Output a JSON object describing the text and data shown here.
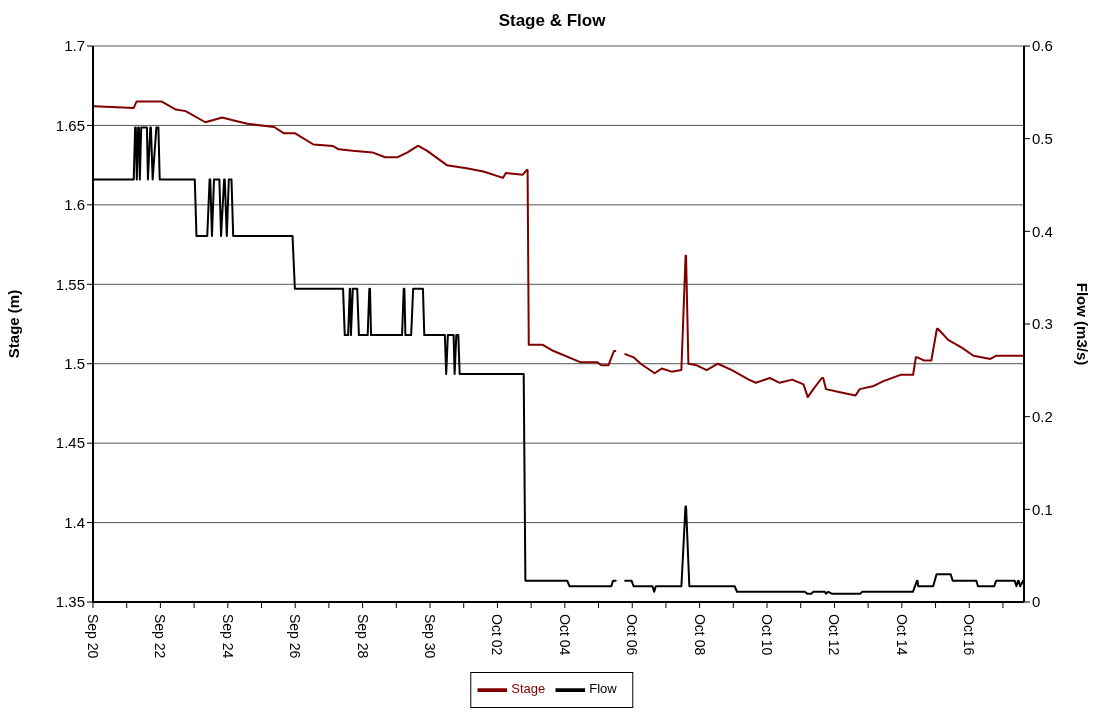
{
  "chart_data": {
    "type": "line",
    "title": "Stage & Flow",
    "ylabel": "Stage (m)",
    "y2label": "Flow (m3/s)",
    "xlim": [
      "--09-20T00:00",
      "--10-17T15:00"
    ],
    "xticks": [
      {
        "value": "--09-20",
        "label": "Sep 20"
      },
      {
        "value": "--09-21",
        "label": null
      },
      {
        "value": "--09-22",
        "label": "Sep 22"
      },
      {
        "value": "--09-23",
        "label": null
      },
      {
        "value": "--09-24",
        "label": "Sep 24"
      },
      {
        "value": "--09-25",
        "label": null
      },
      {
        "value": "--09-26",
        "label": "Sep 26"
      },
      {
        "value": "--09-27",
        "label": null
      },
      {
        "value": "--09-28",
        "label": "Sep 28"
      },
      {
        "value": "--09-29",
        "label": null
      },
      {
        "value": "--09-30",
        "label": "Sep 30"
      },
      {
        "value": "--10-01",
        "label": null
      },
      {
        "value": "--10-02",
        "label": "Oct 02"
      },
      {
        "value": "--10-03",
        "label": null
      },
      {
        "value": "--10-04",
        "label": "Oct 04"
      },
      {
        "value": "--10-05",
        "label": null
      },
      {
        "value": "--10-06",
        "label": "Oct 06"
      },
      {
        "value": "--10-07",
        "label": null
      },
      {
        "value": "--10-08",
        "label": "Oct 08"
      },
      {
        "value": "--10-09",
        "label": null
      },
      {
        "value": "--10-10",
        "label": "Oct 10"
      },
      {
        "value": "--10-11",
        "label": null
      },
      {
        "value": "--10-12",
        "label": "Oct 12"
      },
      {
        "value": "--10-13",
        "label": null
      },
      {
        "value": "--10-14",
        "label": "Oct 14"
      },
      {
        "value": "--10-15",
        "label": null
      },
      {
        "value": "--10-16",
        "label": "Oct 16"
      },
      {
        "value": "--10-17",
        "label": null
      }
    ],
    "ylim": [
      1.35,
      1.7
    ],
    "yticks": [
      1.35,
      1.4,
      1.45,
      1.5,
      1.55,
      1.6,
      1.65,
      1.7
    ],
    "y2lim": [
      0,
      0.6
    ],
    "y2ticks": [
      0,
      0.1,
      0.2,
      0.3,
      0.4,
      0.5,
      0.6
    ],
    "grid": "y",
    "legend": "bottom",
    "series": [
      {
        "name": "Stage",
        "color": "#800000",
        "x": [
          "--09-20T01:00",
          "--09-21T05:00",
          "--09-21T07:00",
          "--09-21T14:00",
          "--09-22T01:00",
          "--09-22T11:00",
          "--09-22T18:00",
          "--09-23T08:00",
          "--09-23T20:00",
          "--09-24T05:00",
          "--09-24T14:00",
          "--09-25T09:00",
          "--09-25T16:00",
          "--09-26T00:00",
          "--09-26T13:00",
          "--09-27T03:00",
          "--09-27T07:00",
          "--09-27T17:00",
          "--09-28T07:00",
          "--09-28T16:00",
          "--09-29T01:00",
          "--09-29T08:00",
          "--09-29T15:00",
          "--09-29T16:00",
          "--09-29T22:00",
          "--09-30T12:00",
          "--10-01T02:00",
          "--10-01T14:00",
          "--10-02T04:00",
          "--10-02T06:00",
          "--10-02T18:00",
          "--10-02T21:00",
          "--10-02T21:30",
          "--10-02T22:20",
          "--10-03T08:00",
          "--10-03T16:00",
          "--10-04T11:00",
          "--10-04T23:00",
          "--10-05T02:00",
          "--10-05T07:00",
          "--10-05T11:00",
          "--10-05T12:00",
          "--10-05T16:00",
          "--10-05T19:00",
          "--10-06T01:00",
          "--10-06T06:00",
          "--10-06T16:00",
          "--10-06T21:00",
          "--10-07T04:00",
          "--10-07T11:00",
          "--10-07T14:00",
          "--10-07T14:20",
          "--10-07T16:00",
          "--10-07T22:00",
          "--10-08T05:00",
          "--10-08T13:00",
          "--10-08T23:00",
          "--10-09T11:00",
          "--10-09T16:00",
          "--10-10T02:00",
          "--10-10T09:00",
          "--10-10T18:00",
          "--10-11T02:00",
          "--10-11T05:00",
          "--10-11T09:00",
          "--10-11T15:00",
          "--10-11T16:00",
          "--10-11T18:00",
          "--10-12T04:00",
          "--10-12T15:00",
          "--10-12T18:00",
          "--10-13T04:00",
          "--10-13T11:00",
          "--10-13T23:00",
          "--10-14T08:00",
          "--10-14T10:00",
          "--10-14T11:00",
          "--10-14T16:00",
          "--10-14T21:00",
          "--10-15T01:00",
          "--10-15T01:40",
          "--10-15T09:00",
          "--10-15T19:00",
          "--10-16T03:00",
          "--10-16T15:00",
          "--10-16T19:00",
          "--10-17T07:00",
          "--10-17T15:00"
        ],
        "values": [
          1.662,
          1.661,
          1.665,
          1.665,
          1.665,
          1.66,
          1.659,
          1.652,
          1.655,
          1.653,
          1.651,
          1.649,
          1.645,
          1.645,
          1.638,
          1.637,
          1.635,
          1.634,
          1.633,
          1.63,
          1.63,
          1.633,
          1.637,
          1.637,
          1.634,
          1.625,
          1.623,
          1.621,
          1.617,
          1.62,
          1.619,
          1.622,
          1.622,
          1.512,
          1.512,
          1.508,
          1.501,
          1.501,
          1.499,
          1.499,
          1.508,
          1.508,
          null,
          1.506,
          1.504,
          1.5,
          1.494,
          1.497,
          1.495,
          1.496,
          1.568,
          1.568,
          1.5,
          1.499,
          1.496,
          1.5,
          1.496,
          1.49,
          1.488,
          1.491,
          1.488,
          1.49,
          1.487,
          1.479,
          1.484,
          1.491,
          1.491,
          1.484,
          1.482,
          1.48,
          1.484,
          1.486,
          1.489,
          1.493,
          1.493,
          1.504,
          1.504,
          1.502,
          1.502,
          1.522,
          1.522,
          1.515,
          1.51,
          1.505,
          1.503,
          1.505,
          1.505,
          1.505
        ]
      },
      {
        "name": "Flow",
        "color": "#000000",
        "axis": "y2",
        "x": [
          "--09-20T01:00",
          "--09-21T05:00",
          "--09-21T06:00",
          "--09-21T06:30",
          "--09-21T07:12",
          "--09-21T08:10",
          "--09-21T08:40",
          "--09-21T09:22",
          "--09-21T10:19",
          "--09-21T14:24",
          "--09-21T15:07",
          "--09-21T16:48",
          "--09-21T17:15",
          "--09-21T18:29",
          "--09-21T21:07",
          "--09-21T22:34",
          "--09-21T23:31",
          "--09-23T00:29",
          "--09-23T01:41",
          "--09-23T09:22",
          "--09-23T11:02",
          "--09-23T11:30",
          "--09-23T12:43",
          "--09-23T14:10",
          "--09-23T18:00",
          "--09-23T19:12",
          "--09-23T21:22",
          "--09-23T21:50",
          "--09-23T23:17",
          "--09-24T00:43",
          "--09-24T02:38",
          "--09-24T03:50",
          "--09-25T22:05",
          "--09-25T23:46",
          "--09-27T10:05",
          "--09-27T11:17",
          "--09-27T13:41",
          "--09-27T14:53",
          "--09-27T15:10",
          "--09-27T15:40",
          "--09-27T17:02",
          "--09-27T20:10",
          "--09-27T21:22",
          "--09-28T03:36",
          "--09-28T04:48",
          "--09-28T05:15",
          "--09-28T06:00",
          "--09-29T04:05",
          "--09-29T05:17",
          "--09-29T05:45",
          "--09-29T06:29",
          "--09-29T10:34",
          "--09-29T12:00",
          "--09-29T18:58",
          "--09-29T19:55",
          "--09-30T10:34",
          "--09-30T11:31",
          "--09-30T12:43",
          "--09-30T16:48",
          "--09-30T17:31",
          "--09-30T18:43",
          "--09-30T20:10",
          "--09-30T21:07",
          "--10-02T18:43",
          "--10-02T19:55",
          "--10-04T01:41",
          "--10-04T03:22",
          "--10-05T09:07",
          "--10-05T10:19",
          "--10-05T12:14",
          "--10-05T16:00",
          "--10-05T18:58",
          "--10-05T23:31",
          "--10-06T00:58",
          "--10-06T14:24",
          "--10-06T15:36",
          "--10-06T16:48",
          "--10-07T11:02",
          "--10-07T13:55",
          "--10-07T14:20",
          "--10-07T16:40",
          "--10-09T00:58",
          "--10-09T02:38",
          "--10-11T02:53",
          "--10-11T04:34",
          "--10-11T07:41",
          "--10-11T08:53",
          "--10-11T17:17",
          "--10-11T18:00",
          "--10-11T19:41",
          "--10-11T22:05",
          "--10-12T18:29",
          "--10-12T19:41",
          "--10-14T07:55",
          "--10-14T10:48",
          "--10-14T11:10",
          "--10-14T11:40",
          "--10-14T22:19",
          "--10-15T00:43",
          "--10-15T10:48",
          "--10-15T12:14",
          "--10-16T05:02",
          "--10-16T06:14",
          "--10-16T17:46",
          "--10-16T19:12",
          "--10-17T08:24",
          "--10-17T09:36",
          "--10-17T10:48",
          "--10-17T11:10",
          "--10-17T12:14",
          "--10-17T14:24"
        ],
        "values": [
          0.456,
          0.456,
          0.512,
          0.512,
          0.456,
          0.512,
          0.512,
          0.456,
          0.512,
          0.512,
          0.456,
          0.512,
          0.512,
          0.456,
          0.512,
          0.512,
          0.456,
          0.456,
          0.395,
          0.395,
          0.456,
          0.456,
          0.395,
          0.456,
          0.456,
          0.395,
          0.456,
          0.456,
          0.395,
          0.456,
          0.456,
          0.395,
          0.395,
          0.338,
          0.338,
          0.288,
          0.288,
          0.338,
          0.338,
          0.288,
          0.338,
          0.338,
          0.288,
          0.288,
          0.338,
          0.338,
          0.288,
          0.288,
          0.338,
          0.338,
          0.288,
          0.288,
          0.338,
          0.338,
          0.288,
          0.288,
          0.246,
          0.288,
          0.288,
          0.246,
          0.288,
          0.288,
          0.246,
          0.246,
          0.023,
          0.023,
          0.017,
          0.017,
          0.023,
          0.023,
          null,
          0.023,
          0.023,
          0.017,
          0.017,
          0.011,
          0.017,
          0.017,
          0.103,
          0.103,
          0.017,
          0.017,
          0.011,
          0.011,
          0.009,
          0.009,
          0.011,
          0.011,
          0.009,
          0.011,
          0.009,
          0.009,
          0.011,
          0.011,
          0.023,
          0.023,
          0.017,
          0.017,
          0.03,
          0.03,
          0.023,
          0.023,
          0.017,
          0.017,
          0.023,
          0.023,
          0.017,
          0.023,
          0.023,
          0.017,
          0.023
        ]
      }
    ]
  }
}
